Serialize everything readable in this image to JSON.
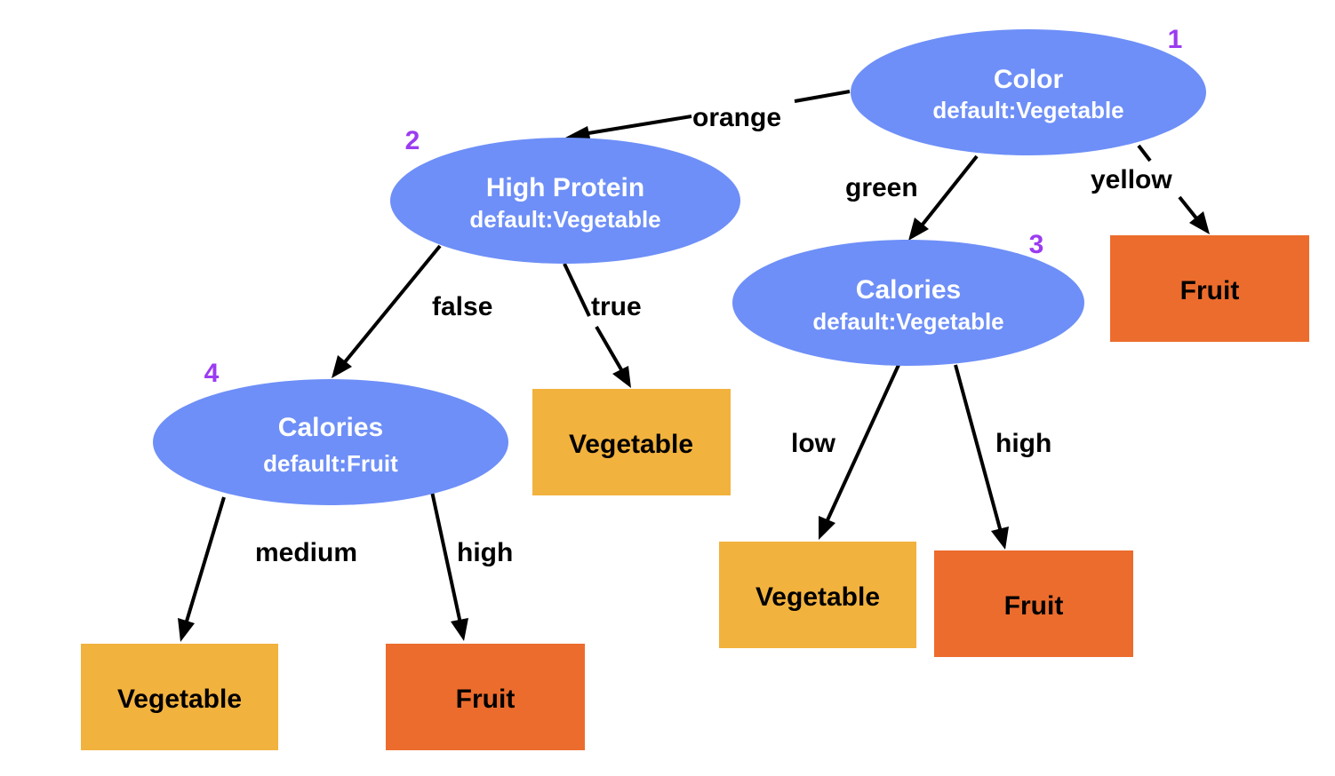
{
  "colors": {
    "decision_node": "#6e8ff7",
    "leaf_vegetable": "#f2b23e",
    "leaf_fruit": "#ec6c2d",
    "node_number": "#9b3cf0",
    "edge": "#000000"
  },
  "nodes": [
    {
      "id": "n1",
      "number": "1",
      "title": "Color",
      "default": "default:Vegetable"
    },
    {
      "id": "n2",
      "number": "2",
      "title": "High Protein",
      "default": "default:Vegetable"
    },
    {
      "id": "n3",
      "number": "3",
      "title": "Calories",
      "default": "default:Vegetable"
    },
    {
      "id": "n4",
      "number": "4",
      "title": "Calories",
      "default": "default:Fruit"
    }
  ],
  "leaves": [
    {
      "id": "leaf-yellow",
      "label": "Fruit",
      "kind": "fruit"
    },
    {
      "id": "leaf-true",
      "label": "Vegetable",
      "kind": "vegetable"
    },
    {
      "id": "leaf-low",
      "label": "Vegetable",
      "kind": "vegetable"
    },
    {
      "id": "leaf-high-3",
      "label": "Fruit",
      "kind": "fruit"
    },
    {
      "id": "leaf-medium",
      "label": "Vegetable",
      "kind": "vegetable"
    },
    {
      "id": "leaf-high-4",
      "label": "Fruit",
      "kind": "fruit"
    }
  ],
  "edges": [
    {
      "id": "e-orange",
      "from": "n1",
      "to": "n2",
      "label": "orange"
    },
    {
      "id": "e-green",
      "from": "n1",
      "to": "n3",
      "label": "green"
    },
    {
      "id": "e-yellow",
      "from": "n1",
      "to": "leaf-yellow",
      "label": "yellow"
    },
    {
      "id": "e-false",
      "from": "n2",
      "to": "n4",
      "label": "false"
    },
    {
      "id": "e-true",
      "from": "n2",
      "to": "leaf-true",
      "label": "true"
    },
    {
      "id": "e-low",
      "from": "n3",
      "to": "leaf-low",
      "label": "low"
    },
    {
      "id": "e-high-3",
      "from": "n3",
      "to": "leaf-high-3",
      "label": "high"
    },
    {
      "id": "e-medium",
      "from": "n4",
      "to": "leaf-medium",
      "label": "medium"
    },
    {
      "id": "e-high-4",
      "from": "n4",
      "to": "leaf-high-4",
      "label": "high"
    }
  ]
}
